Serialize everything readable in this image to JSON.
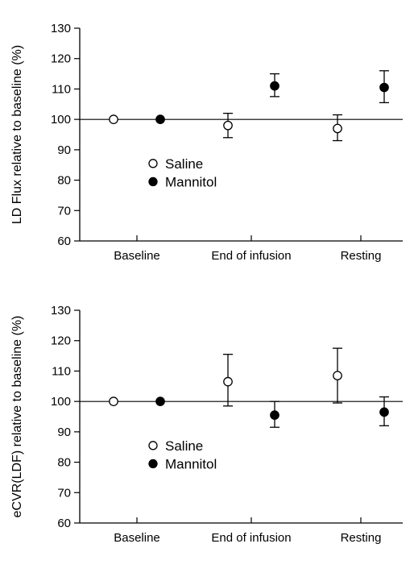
{
  "chart_data": [
    {
      "type": "scatter",
      "title": "",
      "xlabel": "",
      "ylabel": "LD Flux relative to baseline (%)",
      "categories": [
        "Baseline",
        "End of infusion",
        "Resting"
      ],
      "ylim": [
        60,
        130
      ],
      "yticks": [
        "60",
        "70",
        "80",
        "90",
        "100",
        "110",
        "120",
        "130"
      ],
      "reference_line": 100,
      "legend_position": "center-left",
      "series": [
        {
          "name": "Saline",
          "marker": "open-circle",
          "values": [
            100,
            98,
            97
          ],
          "err_low": [
            100,
            94,
            93
          ],
          "err_high": [
            100,
            102,
            101.5
          ]
        },
        {
          "name": "Mannitol",
          "marker": "filled-circle",
          "values": [
            100,
            111,
            110.5
          ],
          "err_low": [
            100,
            107.5,
            105.5
          ],
          "err_high": [
            100,
            115,
            116
          ]
        }
      ]
    },
    {
      "type": "scatter",
      "title": "",
      "xlabel": "",
      "ylabel": "eCVR(LDF) relative to baseline (%)",
      "categories": [
        "Baseline",
        "End of infusion",
        "Resting"
      ],
      "ylim": [
        60,
        130
      ],
      "yticks": [
        "60",
        "70",
        "80",
        "90",
        "100",
        "110",
        "120",
        "130"
      ],
      "reference_line": 100,
      "legend_position": "center-left",
      "series": [
        {
          "name": "Saline",
          "marker": "open-circle",
          "values": [
            100,
            106.5,
            108.5
          ],
          "err_low": [
            100,
            98.5,
            99.5
          ],
          "err_high": [
            100,
            115.5,
            117.5
          ]
        },
        {
          "name": "Mannitol",
          "marker": "filled-circle",
          "values": [
            100,
            95.5,
            96.5
          ],
          "err_low": [
            100,
            91.5,
            92
          ],
          "err_high": [
            100,
            100,
            101.5
          ]
        }
      ]
    }
  ]
}
